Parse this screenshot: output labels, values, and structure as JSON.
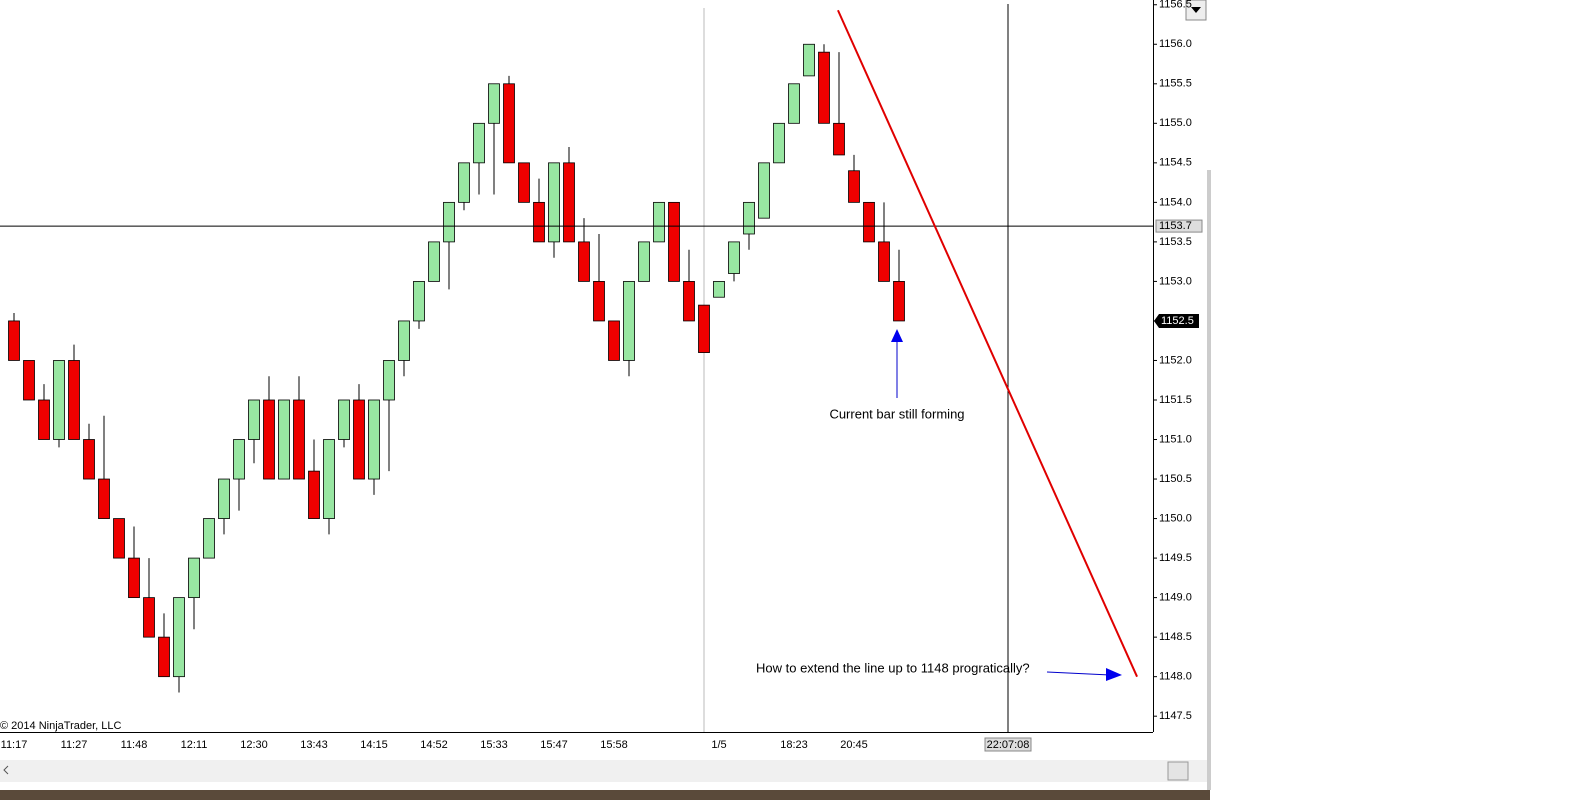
{
  "chart_data": {
    "type": "candlestick",
    "copyright": "© 2014 NinjaTrader, LLC",
    "categories": [
      "11:17",
      null,
      null,
      null,
      "11:27",
      null,
      null,
      null,
      "11:48",
      null,
      null,
      null,
      "12:11",
      null,
      null,
      null,
      "12:30",
      null,
      null,
      null,
      "13:43",
      null,
      null,
      null,
      "14:15",
      null,
      null,
      null,
      "14:52",
      null,
      null,
      null,
      "15:33",
      null,
      null,
      null,
      "15:47",
      null,
      null,
      null,
      "15:58",
      null,
      null,
      null,
      null,
      null,
      null,
      "1/5",
      null,
      null,
      null,
      null,
      "18:23",
      null,
      null,
      null,
      "20:45",
      null,
      null,
      null
    ],
    "open": [
      1152.5,
      1152,
      1151.5,
      1151,
      1152,
      1151,
      1150.5,
      1150,
      1149.5,
      1149,
      1148.5,
      1148,
      1149,
      1149.5,
      1150,
      1150.5,
      1151,
      1151.5,
      1150.5,
      1151.5,
      1150.6,
      1150,
      1151,
      1151.5,
      1150.5,
      1151.5,
      1152,
      1152.5,
      1153,
      1153.5,
      1154,
      1154.5,
      1155,
      1155.5,
      1154.5,
      1154,
      1153.5,
      1154.5,
      1153.5,
      1153,
      1152.5,
      1152,
      1153,
      1153.5,
      1154,
      1153,
      1152.7,
      1152.8,
      1153.1,
      1153.6,
      1153.8,
      1154.5,
      1155,
      1155.6,
      1155.9,
      1155,
      1154.4,
      1154,
      1153.5,
      1153
    ],
    "high": [
      1152.6,
      1152,
      1151.7,
      1152,
      1152.2,
      1151.2,
      1151.3,
      1150,
      1149.9,
      1149.5,
      1148.8,
      1149,
      1149.5,
      1150,
      1150.5,
      1151,
      1151.5,
      1151.8,
      1151.5,
      1151.8,
      1151,
      1151,
      1151.5,
      1151.7,
      1151.5,
      1152,
      1152.5,
      1153,
      1153.5,
      1154,
      1154.5,
      1155,
      1155.5,
      1155.6,
      1154.5,
      1154.3,
      1154.5,
      1154.7,
      1153.8,
      1153.6,
      1152.5,
      1153,
      1153.5,
      1154,
      1154,
      1153.4,
      1152.7,
      1153,
      1153.5,
      1154,
      1154.5,
      1155,
      1155.5,
      1156,
      1156,
      1155.9,
      1154.6,
      1154,
      1154,
      1153.4
    ],
    "low": [
      1152,
      1151.5,
      1151,
      1150.9,
      1151,
      1150.5,
      1150,
      1149.5,
      1149,
      1148.5,
      1148,
      1147.8,
      1148.6,
      1149.5,
      1149.8,
      1150.1,
      1150.7,
      1150.5,
      1150.5,
      1150.5,
      1150,
      1149.8,
      1150.9,
      1150.5,
      1150.3,
      1150.6,
      1151.8,
      1152.4,
      1153,
      1152.9,
      1153.9,
      1154.1,
      1154.1,
      1154.5,
      1154,
      1153.5,
      1153.3,
      1153.5,
      1153,
      1152.5,
      1152,
      1151.8,
      1153,
      1153.5,
      1153,
      1152.5,
      1152.1,
      1152.8,
      1153,
      1153.4,
      1153.8,
      1154.5,
      1155,
      1155.6,
      1155,
      1154.6,
      1154,
      1153.5,
      1153,
      1152.5
    ],
    "close": [
      1152,
      1151.5,
      1151,
      1152,
      1151,
      1150.5,
      1150,
      1149.5,
      1149,
      1148.5,
      1148,
      1149,
      1149.5,
      1150,
      1150.5,
      1151,
      1151.5,
      1150.5,
      1151.5,
      1150.5,
      1150,
      1151,
      1151.5,
      1150.5,
      1151.5,
      1152,
      1152.5,
      1153,
      1153.5,
      1154,
      1154.5,
      1155,
      1155.5,
      1154.5,
      1154,
      1153.5,
      1154.5,
      1153.5,
      1153,
      1152.5,
      1152,
      1153,
      1153.5,
      1154,
      1153,
      1152.5,
      1152.1,
      1153,
      1153.5,
      1154,
      1154.5,
      1155,
      1155.5,
      1156,
      1155,
      1154.6,
      1154,
      1153.5,
      1153,
      1152.5
    ],
    "up_color": "#98e6a2",
    "down_color": "#ee0000",
    "ylim": [
      1147.3,
      1156.56
    ],
    "yticks": [
      1147.5,
      {
        "value": 1148,
        "label": "1148.0"
      },
      1148.5,
      {
        "value": 1149,
        "label": "1149.0"
      },
      1149.5,
      {
        "value": 1150,
        "label": "1150.0"
      },
      1150.5,
      {
        "value": 1151,
        "label": "1151.0"
      },
      1151.5,
      {
        "value": 1152,
        "label": "1152.0"
      },
      1152.5,
      {
        "value": 1153,
        "label": "1153.0"
      },
      1153.5,
      {
        "value": 1154,
        "label": "1154.0"
      },
      1154.5,
      {
        "value": 1155,
        "label": "1155.0"
      },
      1155.5,
      {
        "value": 1156,
        "label": "1156.0"
      },
      1156.5
    ],
    "crosshair": {
      "price": 1153.7,
      "time": "22:07:08"
    },
    "last_price": 1152.5,
    "trend_line": {
      "x": [
        54.93,
        74.87
      ],
      "y": [
        1156.43,
        1148
      ],
      "color": "#e00000"
    },
    "annotations": [
      "Current bar still forming",
      "How to extend the line up to 1148 progratically?"
    ]
  }
}
